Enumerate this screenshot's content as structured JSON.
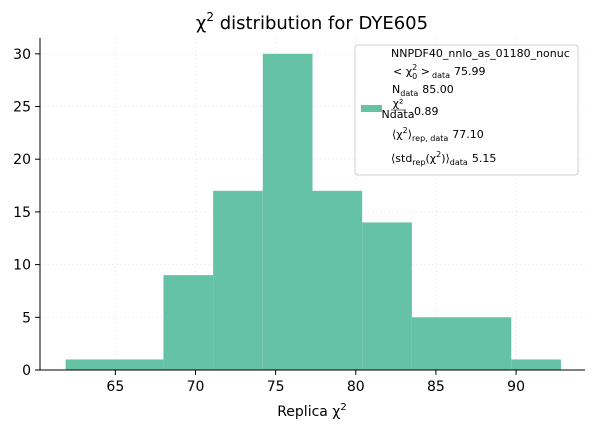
{
  "chart_data": {
    "type": "bar",
    "title": "χ",
    "title_sup": "2",
    "title_rest": " distribution for DYE605",
    "xlabel": "Replica χ",
    "xlabel_sup": "2",
    "xlim": [
      60.3,
      94.3
    ],
    "ylim": [
      0,
      31.5
    ],
    "x_ticks": [
      65,
      70,
      75,
      80,
      85,
      90
    ],
    "y_ticks": [
      0,
      5,
      10,
      15,
      20,
      25,
      30
    ],
    "grid": "faint",
    "bar_color": "#66c2a5",
    "bins": [
      {
        "x0": 61.9,
        "x1": 68.0,
        "count": 1
      },
      {
        "x0": 68.0,
        "x1": 71.1,
        "count": 9
      },
      {
        "x0": 71.1,
        "x1": 74.2,
        "count": 17
      },
      {
        "x0": 74.2,
        "x1": 77.3,
        "count": 30
      },
      {
        "x0": 77.3,
        "x1": 80.4,
        "count": 17
      },
      {
        "x0": 80.4,
        "x1": 83.5,
        "count": 14
      },
      {
        "x0": 83.5,
        "x1": 89.7,
        "count": 5
      },
      {
        "x0": 89.7,
        "x1": 92.8,
        "count": 1
      }
    ],
    "legend": {
      "placement": "top-right",
      "name": "NNPDF40_nnlo_as_01180_nonuc",
      "chi2_label": "< χ",
      "chi2_sub": "0",
      "chi2_sup": "2",
      "chi2_after": " >",
      "chi2_sub2": "data",
      "chi2_value": "75.99",
      "ndata_label": "N",
      "ndata_sub": "data",
      "ndata_value": "85.00",
      "ratio_num": "χ²",
      "ratio_den": "Ndata",
      "ratio_value": "0.89",
      "rep_label": "⟨χ",
      "rep_sup": "2",
      "rep_after": "⟩",
      "rep_sub": "rep, data",
      "rep_value": "77.10",
      "std_label": "⟨std",
      "std_sub1": "rep",
      "std_mid": "(χ",
      "std_sup": "2",
      "std_after": ")⟩",
      "std_sub2": "data",
      "std_value": "5.15"
    }
  }
}
